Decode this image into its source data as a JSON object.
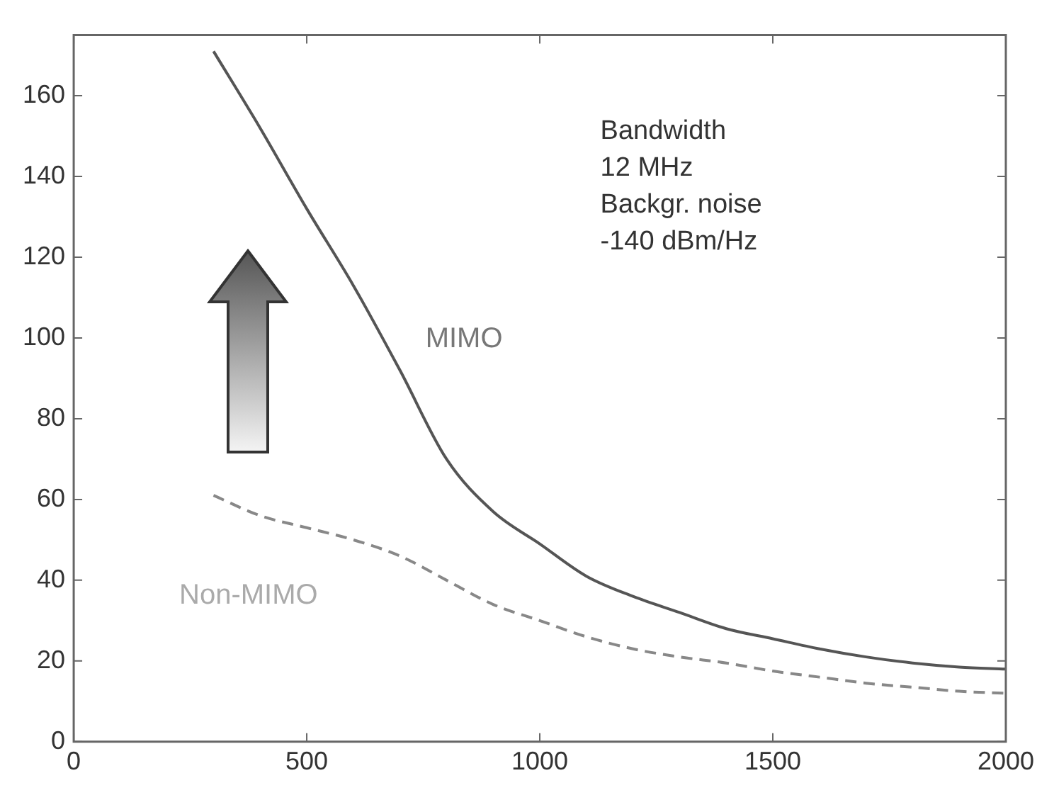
{
  "chart_data": {
    "type": "line",
    "x": [
      300,
      400,
      500,
      600,
      700,
      800,
      900,
      1000,
      1100,
      1200,
      1300,
      1400,
      1500,
      1600,
      1700,
      1800,
      1900,
      2000
    ],
    "series": [
      {
        "name": "MIMO",
        "color": "#555555",
        "line_style": "solid",
        "values": [
          171,
          152,
          132,
          113,
          92,
          70,
          57,
          49,
          41,
          36,
          32,
          28,
          25.5,
          23,
          21,
          19.5,
          18.5,
          18
        ]
      },
      {
        "name": "Non-MIMO",
        "color": "#888888",
        "line_style": "dashed",
        "values": [
          61,
          56,
          53,
          50,
          46,
          40,
          34,
          30,
          26,
          23,
          21,
          19.5,
          17.5,
          16,
          14.5,
          13.5,
          12.5,
          12
        ]
      }
    ],
    "xlim": [
      0,
      2000
    ],
    "xticks": [
      0,
      500,
      1000,
      1500,
      2000
    ],
    "ylim": [
      0,
      175
    ],
    "yticks": [
      0,
      20,
      40,
      60,
      80,
      100,
      120,
      140,
      160
    ],
    "grid": false,
    "legend": false,
    "marker": "none",
    "annotations": [
      "Bandwidth\n12 MHz\nBackgr. noise\n-140 dBm/Hz"
    ]
  }
}
